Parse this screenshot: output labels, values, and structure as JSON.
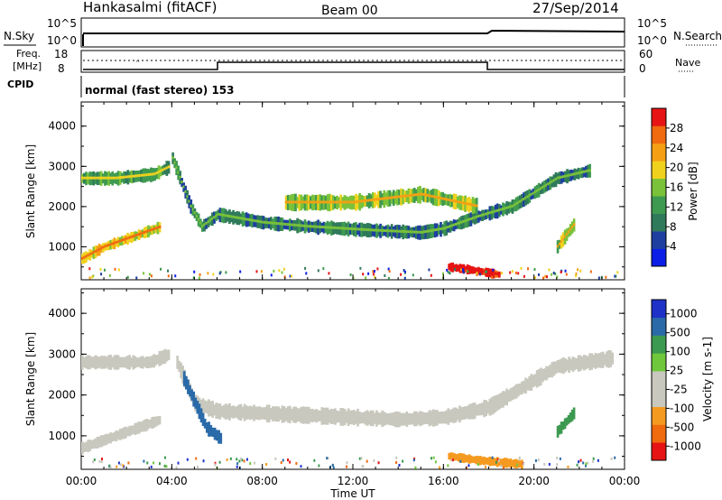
{
  "header": {
    "station": "Hankasalmi (fitACF)",
    "beam": "Beam 00",
    "date": "27/Sep/2014"
  },
  "noise_panel": {
    "left_label": "N.Sky",
    "right_label": "N.Search",
    "left_ticks": [
      "10^5",
      "10^0"
    ],
    "right_ticks": [
      "10^5",
      "10^0"
    ]
  },
  "freq_panel": {
    "left_label_1": "Freq.",
    "left_label_2": "[MHz]",
    "left_ticks": [
      "18",
      "8"
    ],
    "right_ticks": [
      "60",
      "0"
    ],
    "right_label": "Nave"
  },
  "cpid": {
    "label": "CPID",
    "mode_text": "normal (fast stereo) 153"
  },
  "colors": {
    "power": [
      "#0a1ee6",
      "#1e3fa0",
      "#2f7a5a",
      "#3e9a50",
      "#7ac23a",
      "#f0d21e",
      "#f5a014",
      "#f06a10",
      "#e61414"
    ],
    "velocity": [
      "#e61414",
      "#f06a10",
      "#f59a20",
      "#c8c8be",
      "#c8c8be",
      "#6fc83c",
      "#3c9a50",
      "#2a6aa8",
      "#1e32c8"
    ]
  },
  "chart_data": [
    {
      "type": "heatmap",
      "name": "power",
      "ylabel": "Slant Range [km]",
      "yticks": [
        1000,
        2000,
        3000,
        4000
      ],
      "ylim": [
        180,
        4600
      ],
      "xlim": [
        0,
        24
      ],
      "colorbar": {
        "label": "Power [dB]",
        "ticks": [
          "4",
          "8",
          "12",
          "16",
          "20",
          "24",
          "28"
        ],
        "range": [
          0,
          32
        ]
      },
      "features": [
        {
          "range_km": [
            [
              0,
              2700
            ],
            [
              1.5,
              2700
            ],
            [
              3.2,
              2800
            ],
            [
              3.9,
              3000
            ]
          ],
          "width_km": 300,
          "level": 3
        },
        {
          "range_km": [
            [
              4.0,
              3200
            ],
            [
              4.8,
              2000
            ],
            [
              5.3,
              1500
            ],
            [
              6.0,
              1800
            ],
            [
              8.0,
              1600
            ],
            [
              10.0,
              1500
            ],
            [
              13.0,
              1400
            ],
            [
              15.0,
              1350
            ],
            [
              16.0,
              1450
            ],
            [
              17.5,
              1750
            ],
            [
              19.0,
              2000
            ],
            [
              21.0,
              2700
            ],
            [
              22.5,
              2900
            ]
          ],
          "width_km": 300,
          "level": 2
        },
        {
          "range_km": [
            [
              9.0,
              2100
            ],
            [
              12.0,
              2100
            ],
            [
              15.0,
              2300
            ],
            [
              17.5,
              2000
            ]
          ],
          "width_km": 350,
          "level": 4
        },
        {
          "range_km": [
            [
              0,
              700
            ],
            [
              1.0,
              1000
            ],
            [
              2.5,
              1300
            ],
            [
              3.5,
              1500
            ]
          ],
          "width_km": 250,
          "level": 5
        },
        {
          "range_km": [
            [
              16.2,
              500
            ],
            [
              17.5,
              400
            ],
            [
              18.5,
              300
            ]
          ],
          "width_km": 200,
          "level": 8
        },
        {
          "range_km": [
            [
              21.0,
              1000
            ],
            [
              21.8,
              1600
            ]
          ],
          "width_km": 300,
          "level": 4
        }
      ]
    },
    {
      "type": "heatmap",
      "name": "velocity",
      "ylabel": "Slant Range [km]",
      "xlabel": "Time UT",
      "xticks": [
        "00:00",
        "04:00",
        "08:00",
        "12:00",
        "16:00",
        "20:00",
        "00:00"
      ],
      "yticks": [
        1000,
        2000,
        3000,
        4000
      ],
      "ylim": [
        180,
        4600
      ],
      "xlim": [
        0,
        24
      ],
      "colorbar": {
        "label": "Velocity [m s-1]",
        "ticks": [
          "1000",
          "500",
          "100",
          "25",
          "-25",
          "-100",
          "-500",
          "-1000"
        ]
      },
      "features": [
        {
          "range_km": [
            [
              0,
              2800
            ],
            [
              3.0,
              2800
            ],
            [
              3.9,
              3000
            ]
          ],
          "width_km": 300,
          "color": 3
        },
        {
          "range_km": [
            [
              4.2,
              2800
            ],
            [
              5.0,
              1800
            ],
            [
              6.0,
              1600
            ],
            [
              10.0,
              1500
            ],
            [
              14.0,
              1400
            ],
            [
              16.0,
              1450
            ],
            [
              18.0,
              1700
            ],
            [
              21.0,
              2700
            ],
            [
              23.5,
              2900
            ]
          ],
          "width_km": 350,
          "color": 3
        },
        {
          "range_km": [
            [
              4.5,
              2400
            ],
            [
              5.5,
              1200
            ],
            [
              6.2,
              900
            ]
          ],
          "width_km": 300,
          "color": 7
        },
        {
          "range_km": [
            [
              16.2,
              500
            ],
            [
              17.5,
              400
            ],
            [
              19.5,
              300
            ]
          ],
          "width_km": 200,
          "color": 2
        },
        {
          "range_km": [
            [
              0,
              700
            ],
            [
              2.0,
              1100
            ],
            [
              3.5,
              1400
            ]
          ],
          "width_km": 250,
          "color": 3
        },
        {
          "range_km": [
            [
              21.0,
              1100
            ],
            [
              21.8,
              1600
            ]
          ],
          "width_km": 250,
          "color": 6
        }
      ]
    }
  ]
}
